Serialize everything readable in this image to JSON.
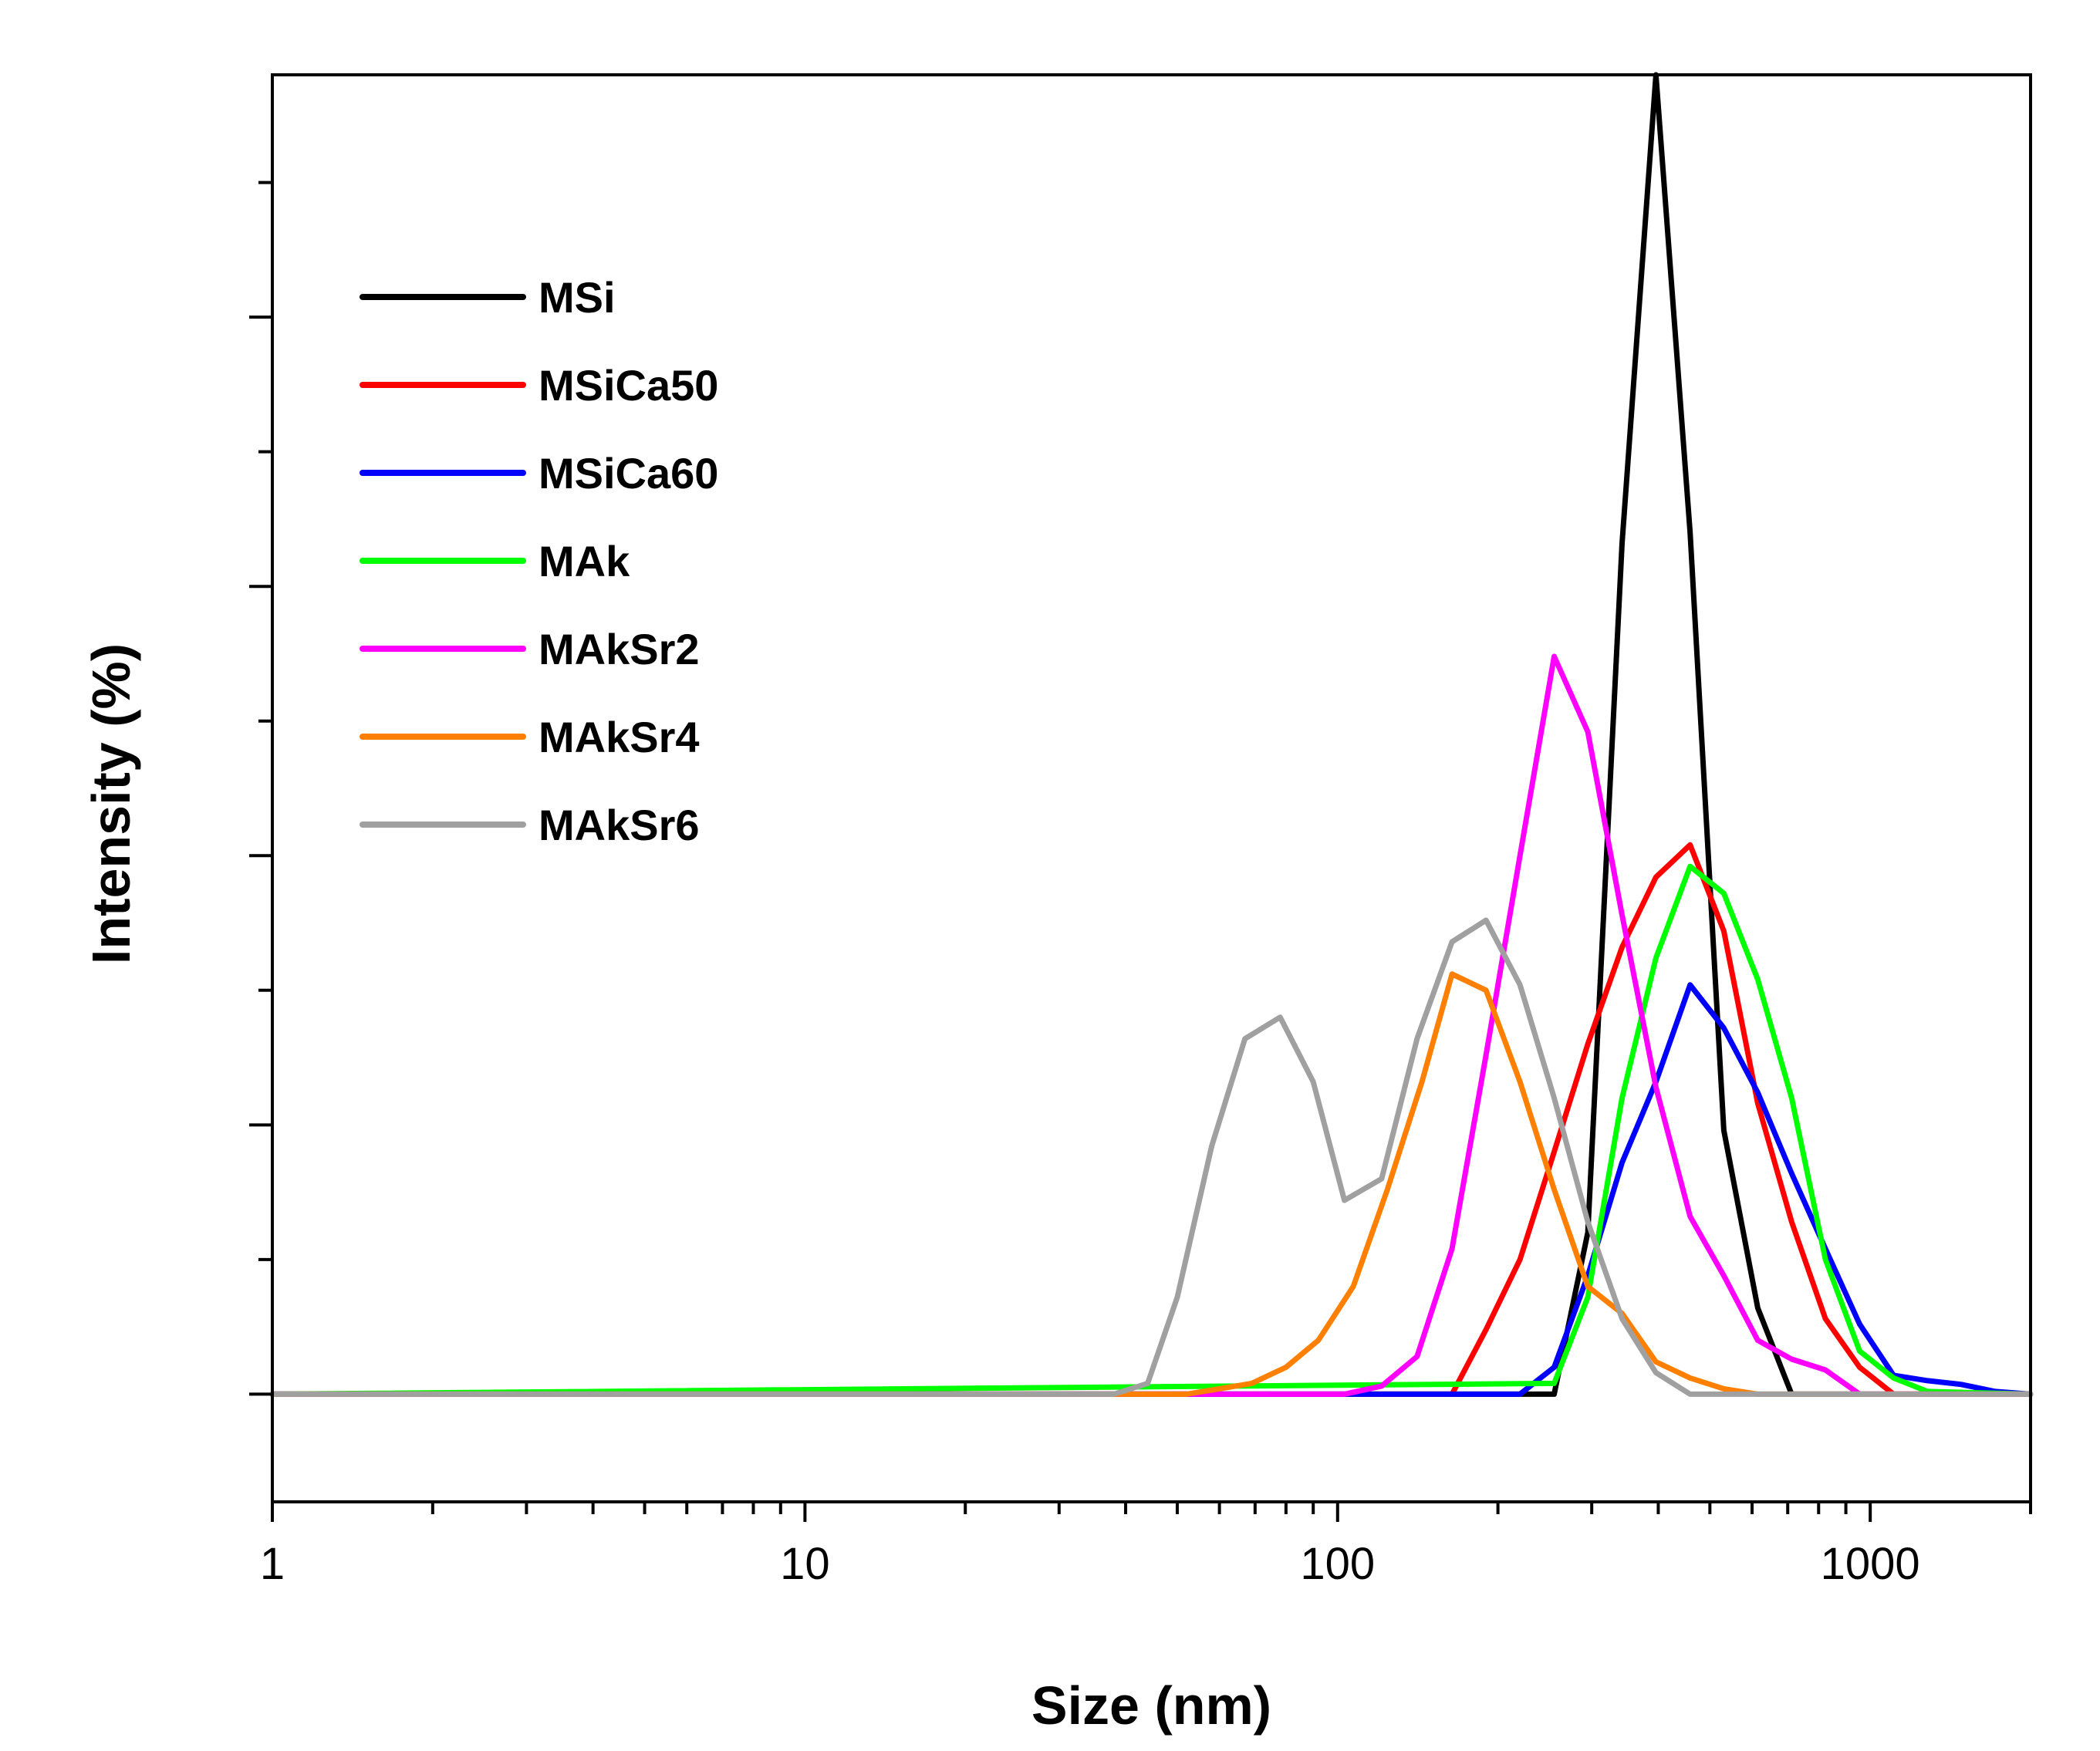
{
  "chart_data": {
    "type": "line",
    "title": "",
    "xlabel": "Size (nm)",
    "ylabel": "Intensity (%)",
    "x_scale": "log",
    "xlim": [
      1,
      2000
    ],
    "ylim": [
      -2,
      24.5
    ],
    "x_tick_labels": [
      "1",
      "10",
      "100",
      "1000"
    ],
    "x_ticks": [
      1,
      10,
      100,
      1000
    ],
    "y_tick_labels_visible": false,
    "legend_position": "top-left",
    "grid": false,
    "series": [
      {
        "name": "MSi",
        "color": "#000000",
        "x": [
          1,
          255,
          295,
          342,
          396,
          459,
          531,
          615,
          712,
          824,
          2000
        ],
        "y": [
          0,
          0,
          3,
          15.8,
          24.5,
          16,
          4.9,
          1.6,
          0,
          0,
          0
        ]
      },
      {
        "name": "MSiCa50",
        "color": "#ff0000",
        "x": [
          1,
          164,
          190,
          220,
          255,
          295,
          342,
          396,
          459,
          531,
          615,
          712,
          824,
          955,
          1106,
          2000
        ],
        "y": [
          0,
          0,
          1.2,
          2.5,
          4.5,
          6.5,
          8.3,
          9.6,
          10.2,
          8.6,
          5.4,
          3.2,
          1.4,
          0.5,
          0,
          0
        ],
        "comment": ""
      },
      {
        "name": "MSiCa60",
        "color": "#0000ff",
        "x": [
          1,
          220,
          255,
          295,
          342,
          396,
          459,
          531,
          615,
          712,
          824,
          955,
          1106,
          1281,
          1483,
          1717,
          2000
        ],
        "y": [
          0,
          0,
          0.5,
          2.2,
          4.3,
          5.8,
          7.6,
          6.8,
          5.6,
          4.1,
          2.7,
          1.3,
          0.35,
          0.25,
          0.18,
          0.05,
          0
        ]
      },
      {
        "name": "MAk",
        "color": "#00ff00",
        "x": [
          1,
          255,
          295,
          342,
          396,
          459,
          531,
          615,
          712,
          824,
          955,
          1106,
          1281,
          2000
        ],
        "y": [
          0,
          0.2,
          1.8,
          5.5,
          8.1,
          9.8,
          9.3,
          7.7,
          5.5,
          2.5,
          0.8,
          0.3,
          0.05,
          0
        ]
      },
      {
        "name": "MAkSr2",
        "color": "#ff00ff",
        "x": [
          1,
          103,
          121,
          141,
          164,
          190,
          220,
          255,
          295,
          342,
          396,
          459,
          531,
          615,
          712,
          824,
          955,
          2000
        ],
        "y": [
          0,
          0,
          0.15,
          0.7,
          2.7,
          6.3,
          10,
          13.7,
          12.3,
          8.9,
          5.7,
          3.3,
          2.2,
          1,
          0.65,
          0.45,
          0,
          0
        ]
      },
      {
        "name": "MAkSr4",
        "color": "#ff8000",
        "x": [
          1,
          40,
          52,
          60,
          69,
          80,
          92,
          107,
          124,
          144,
          164,
          190,
          220,
          255,
          295,
          342,
          396,
          459,
          531,
          615,
          712,
          1000,
          2000
        ],
        "y": [
          0,
          0,
          0,
          0.1,
          0.2,
          0.5,
          1,
          2,
          3.8,
          5.8,
          7.8,
          7.5,
          5.8,
          3.8,
          2,
          1.5,
          0.6,
          0.3,
          0.1,
          0,
          0,
          0,
          0
        ]
      },
      {
        "name": "MAkSr6",
        "color": "#a0a0a0",
        "x": [
          1,
          38,
          44,
          50,
          58,
          67,
          78,
          90,
          103,
          121,
          141,
          164,
          190,
          220,
          255,
          295,
          342,
          396,
          459,
          531,
          2000
        ],
        "y": [
          0,
          0,
          0.2,
          1.8,
          4.6,
          6.6,
          7,
          5.8,
          3.6,
          4,
          6.6,
          8.4,
          8.8,
          7.6,
          5.5,
          3.2,
          1.4,
          0.4,
          0,
          0,
          0
        ]
      }
    ]
  }
}
